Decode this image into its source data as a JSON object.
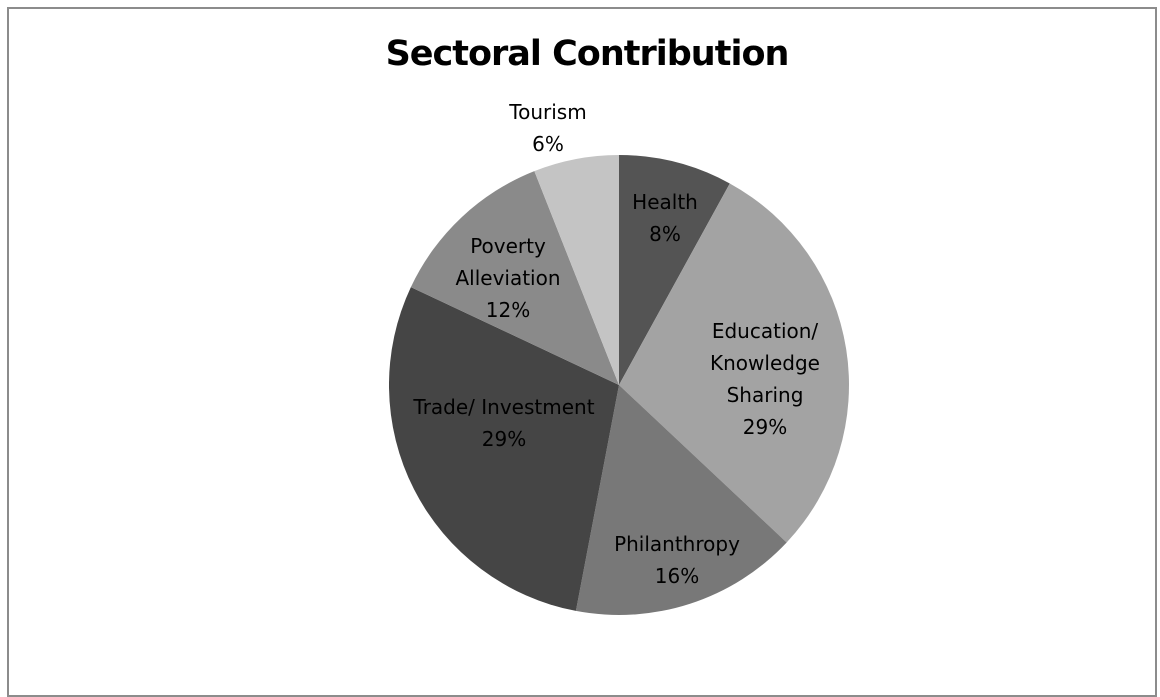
{
  "chart_data": {
    "type": "pie",
    "title": "Sectoral Contribution",
    "slices": [
      {
        "label": "Health",
        "label_lines": [
          "Health",
          "8%"
        ],
        "value": 8,
        "color": "#545454"
      },
      {
        "label": "Education/ Knowledge Sharing",
        "label_lines": [
          "Education/",
          "Knowledge",
          "Sharing",
          "29%"
        ],
        "value": 29,
        "color": "#a3a3a3"
      },
      {
        "label": "Philanthropy",
        "label_lines": [
          "Philanthropy",
          "16%"
        ],
        "value": 16,
        "color": "#787878"
      },
      {
        "label": "Trade/ Investment",
        "label_lines": [
          "Trade/ Investment",
          "29%"
        ],
        "value": 29,
        "color": "#454545"
      },
      {
        "label": "Poverty Alleviation",
        "label_lines": [
          "Poverty",
          "Alleviation",
          "12%"
        ],
        "value": 12,
        "color": "#8a8a8a"
      },
      {
        "label": "Tourism",
        "label_lines": [
          "Tourism",
          "6%"
        ],
        "value": 6,
        "color": "#c4c4c4"
      }
    ],
    "start_angle": "12 o'clock",
    "direction": "clockwise",
    "legend": "none"
  }
}
